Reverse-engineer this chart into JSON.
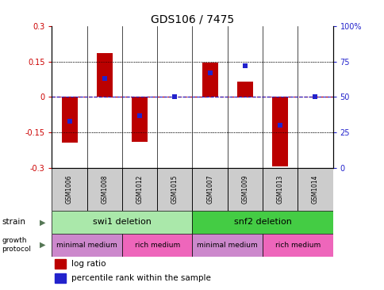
{
  "title": "GDS106 / 7475",
  "samples": [
    "GSM1006",
    "GSM1008",
    "GSM1012",
    "GSM1015",
    "GSM1007",
    "GSM1009",
    "GSM1013",
    "GSM1014"
  ],
  "log_ratios": [
    -0.195,
    0.185,
    -0.19,
    0.0,
    0.145,
    0.065,
    -0.295,
    0.0
  ],
  "percentile_ranks_pct": [
    33,
    63,
    37,
    50,
    67,
    72,
    30,
    50
  ],
  "ylim": [
    -0.3,
    0.3
  ],
  "yticks_left": [
    -0.3,
    -0.15,
    0,
    0.15,
    0.3
  ],
  "yticks_right": [
    0,
    25,
    50,
    75,
    100
  ],
  "strain_groups": [
    {
      "label": "swi1 deletion",
      "start": 0,
      "end": 4,
      "color": "#aae8aa"
    },
    {
      "label": "snf2 deletion",
      "start": 4,
      "end": 8,
      "color": "#44cc44"
    }
  ],
  "growth_groups": [
    {
      "label": "minimal medium",
      "start": 0,
      "end": 2,
      "color": "#cc88cc"
    },
    {
      "label": "rich medium",
      "start": 2,
      "end": 4,
      "color": "#ee66bb"
    },
    {
      "label": "minimal medium",
      "start": 4,
      "end": 6,
      "color": "#cc88cc"
    },
    {
      "label": "rich medium",
      "start": 6,
      "end": 8,
      "color": "#ee66bb"
    }
  ],
  "bar_color": "#bb0000",
  "dot_color": "#2222cc",
  "zero_line_color": "#cc0000",
  "dotted_line_color": "#000000",
  "right_axis_color": "#2222cc",
  "left_axis_color": "#cc0000",
  "bar_width": 0.45,
  "dot_size": 22,
  "background_color": "white",
  "sample_bg_color": "#cccccc",
  "title_fontsize": 10,
  "tick_fontsize": 7,
  "sample_fontsize": 5.5,
  "group_fontsize": 8,
  "legend_fontsize": 7.5
}
